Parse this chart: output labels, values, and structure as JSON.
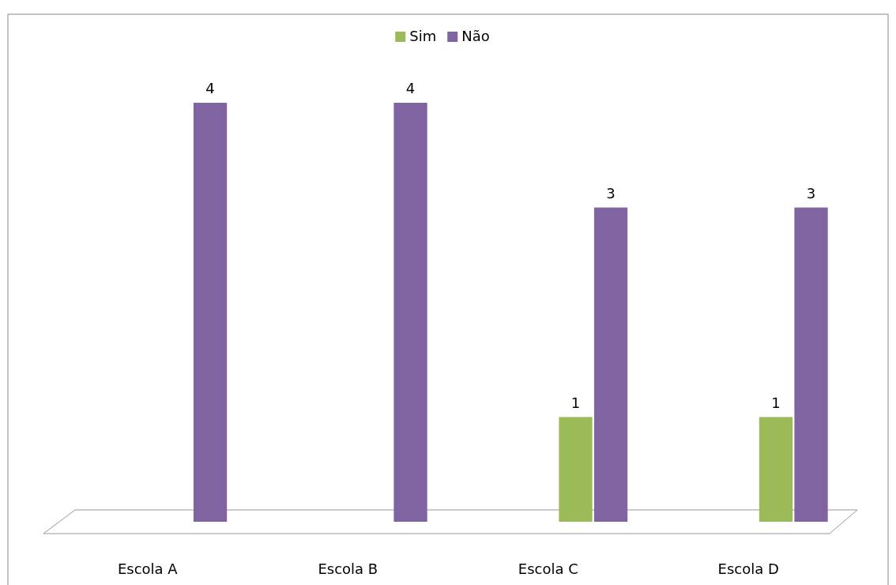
{
  "chart_data": {
    "type": "bar",
    "categories": [
      "Escola A",
      "Escola B",
      "Escola C",
      "Escola D"
    ],
    "series": [
      {
        "name": "Sim",
        "color": "#9bbb59",
        "values": [
          null,
          null,
          1,
          1
        ]
      },
      {
        "name": "Não",
        "color": "#8064a2",
        "values": [
          4,
          4,
          3,
          3
        ]
      }
    ],
    "data_labels": true,
    "legend": "top"
  }
}
